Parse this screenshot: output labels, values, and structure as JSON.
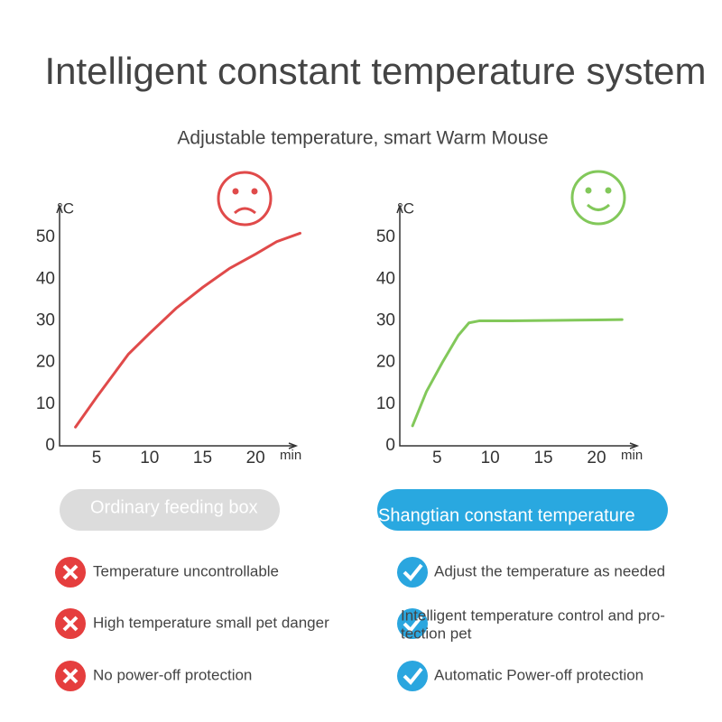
{
  "header": {
    "title": "Intelligent constant temperature system",
    "subtitle": "Adjustable temperature, smart Warm Mouse"
  },
  "chart_data": [
    {
      "type": "line",
      "x_label": "min",
      "y_label": "°C",
      "color": "#e04a4a",
      "x": [
        3,
        5,
        8,
        10,
        12.5,
        15,
        17.5,
        20,
        22,
        24.2
      ],
      "values": [
        4.5,
        11.7,
        22,
        27,
        33,
        38,
        42.5,
        46,
        49,
        51
      ],
      "xlim": [
        1.5,
        24.5
      ],
      "ylim": [
        0,
        55
      ],
      "xticks": [
        5,
        10,
        15,
        20
      ],
      "yticks": [
        0,
        10,
        20,
        30,
        40,
        50
      ],
      "grid": false
    },
    {
      "type": "line",
      "x_label": "min",
      "y_label": "°C",
      "color": "#82c85a",
      "x": [
        2.7,
        4,
        5.5,
        7,
        8,
        9,
        12,
        16,
        20,
        22.4
      ],
      "values": [
        4.8,
        13,
        20,
        26.5,
        29.5,
        30,
        30,
        30.1,
        30.2,
        30.3
      ],
      "xlim": [
        1.5,
        24.5
      ],
      "ylim": [
        0,
        55
      ],
      "xticks": [
        5,
        10,
        15,
        20
      ],
      "yticks": [
        0,
        10,
        20,
        30,
        40,
        50
      ],
      "grid": false
    }
  ],
  "buttons": [
    "Ordinary feeding box",
    "Shangtian constant temperature"
  ],
  "features": {
    "left": [
      "Temperature uncontrollable",
      "High temperature small pet danger",
      "No power-off protection"
    ],
    "right": [
      "Adjust the temperature as needed",
      [
        "Intelligent temperature control and pro-",
        "tection pet"
      ],
      "Automatic Power-off protection"
    ]
  }
}
